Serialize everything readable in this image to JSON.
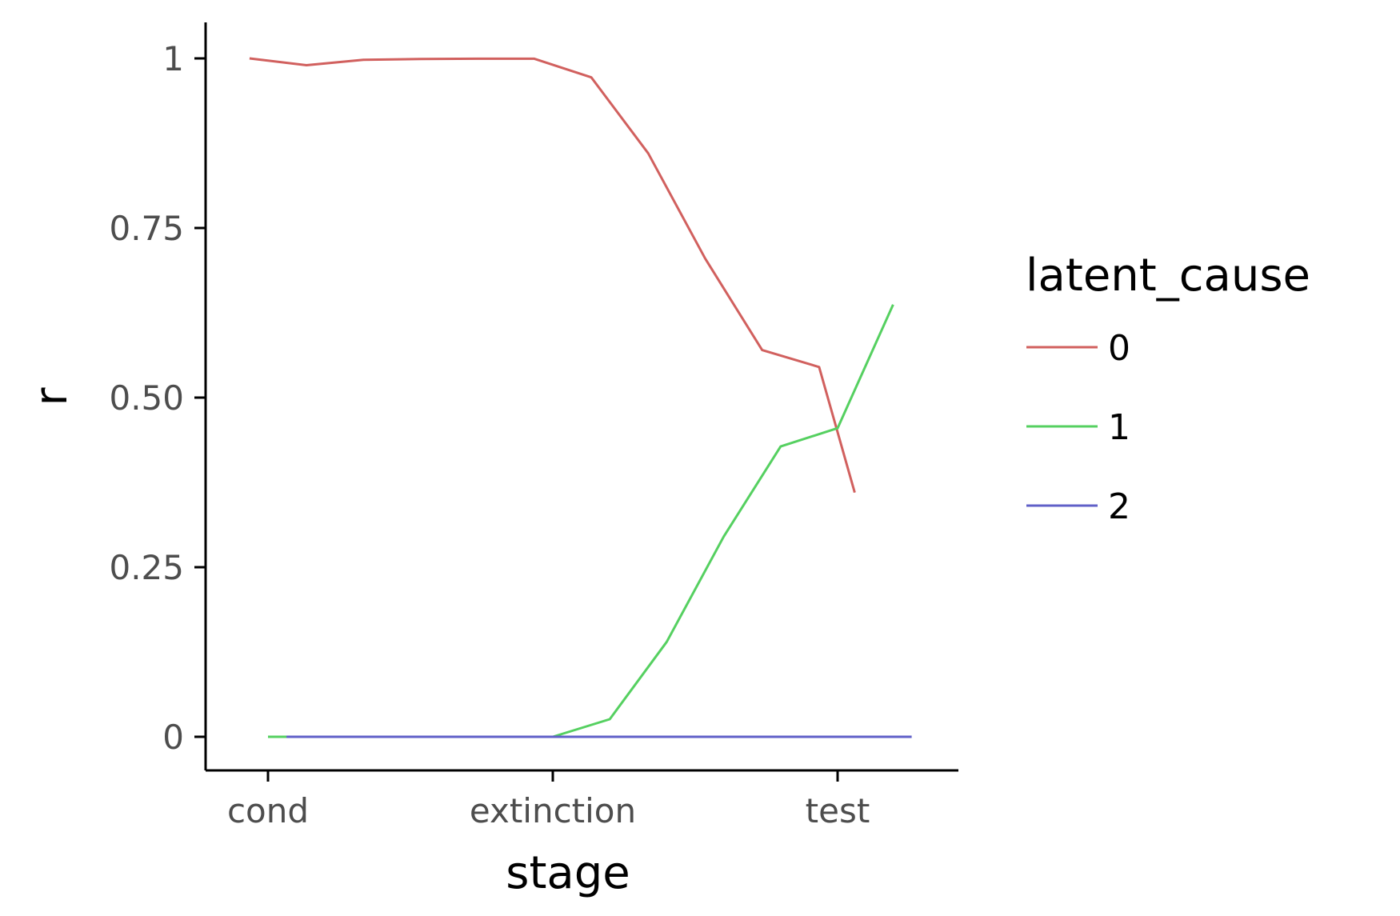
{
  "chart_data": {
    "type": "line",
    "xlabel": "stage",
    "ylabel": "r",
    "ylim": [
      0,
      1
    ],
    "yticks": [
      {
        "value": 0,
        "label": "0"
      },
      {
        "value": 0.25,
        "label": "0.25"
      },
      {
        "value": 0.5,
        "label": "0.50"
      },
      {
        "value": 0.75,
        "label": "0.75"
      },
      {
        "value": 1,
        "label": "1"
      }
    ],
    "xticks": [
      {
        "value": 0,
        "label": "cond"
      },
      {
        "value": 1,
        "label": "extinction"
      },
      {
        "value": 2,
        "label": "test"
      }
    ],
    "xlim": [
      -0.22,
      2.42
    ],
    "grid": false,
    "legend": {
      "title": "latent_cause",
      "position": "right"
    },
    "series": [
      {
        "name": "0",
        "color": "#d1605e",
        "x": [
          -0.065,
          0.135,
          0.335,
          0.535,
          0.735,
          0.935,
          1.135,
          1.335,
          1.535,
          1.735,
          1.935,
          2.06
        ],
        "y": [
          1.0,
          0.99,
          0.998,
          0.999,
          0.9995,
          0.9995,
          0.972,
          0.86,
          0.705,
          0.57,
          0.545,
          0.36
        ]
      },
      {
        "name": "1",
        "color": "#55d060",
        "x": [
          0.0,
          0.2,
          0.4,
          0.6,
          0.8,
          1.0,
          1.2,
          1.4,
          1.6,
          1.8,
          2.0,
          2.195
        ],
        "y": [
          0.0,
          0.0,
          0.0,
          0.0,
          0.0,
          0.0,
          0.026,
          0.14,
          0.295,
          0.428,
          0.455,
          0.637
        ]
      },
      {
        "name": "2",
        "color": "#6060c8",
        "x": [
          0.065,
          0.265,
          0.465,
          0.665,
          0.865,
          1.065,
          1.265,
          1.465,
          1.665,
          1.865,
          2.065,
          2.26
        ],
        "y": [
          0.0,
          0.0,
          0.0,
          0.0,
          0.0,
          0.0,
          0.0,
          0.0,
          0.0,
          0.0,
          0.0,
          0.0
        ]
      }
    ]
  }
}
